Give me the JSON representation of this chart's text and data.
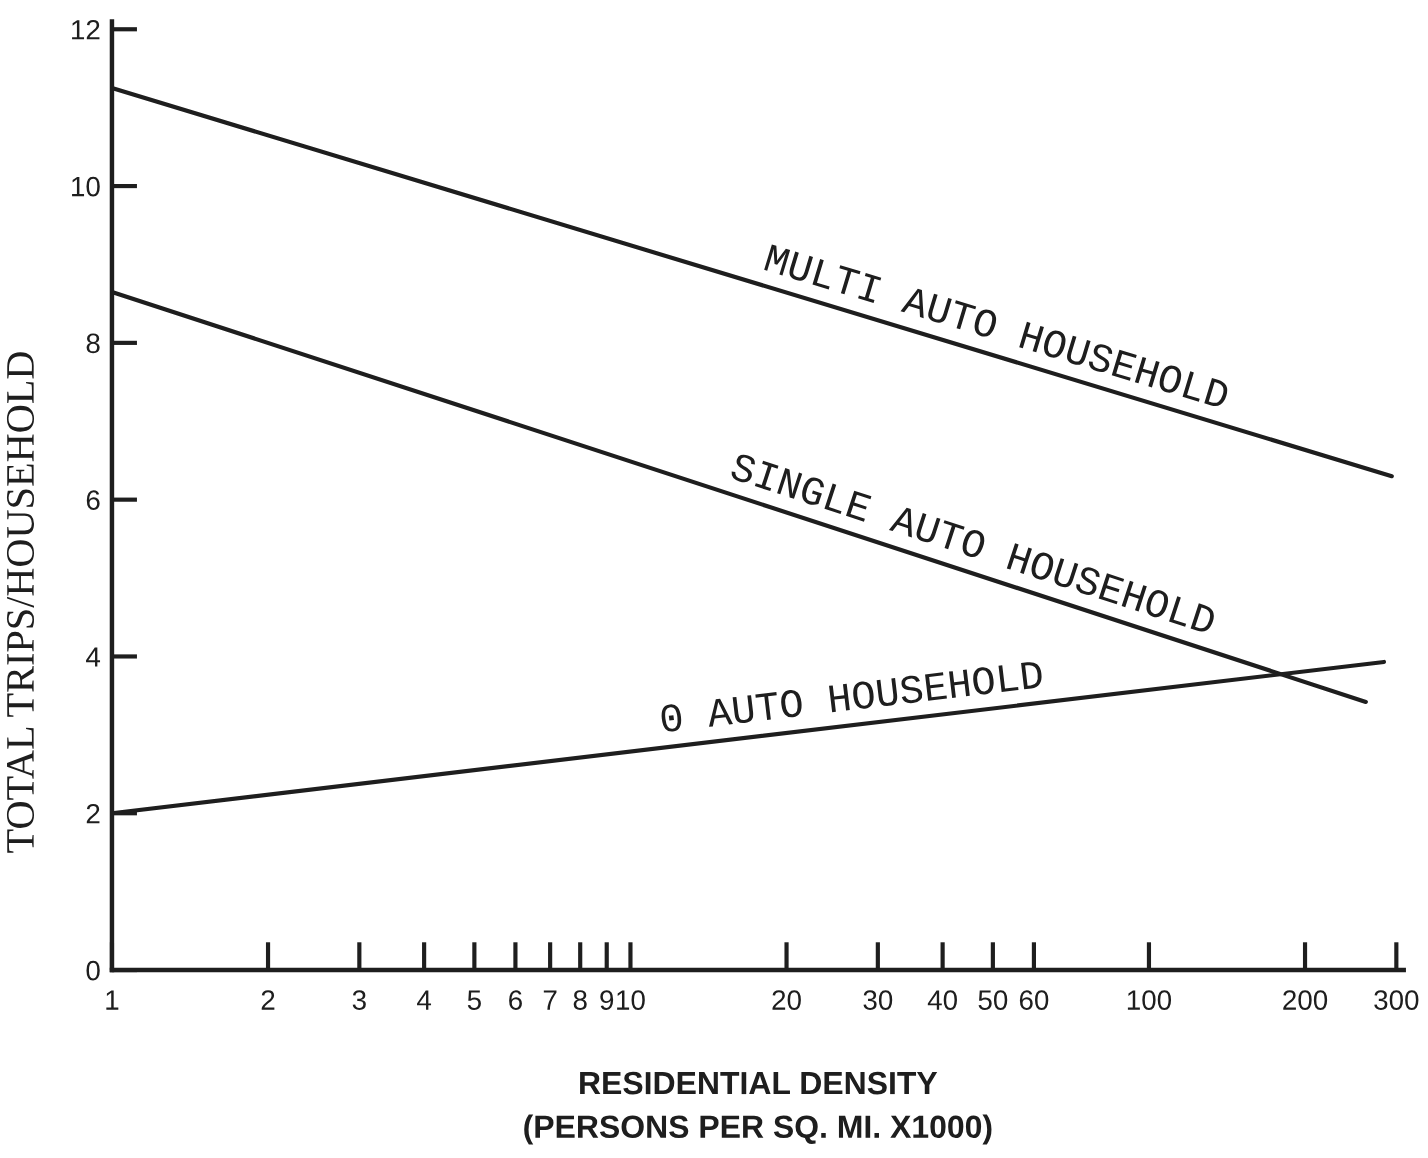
{
  "chart_data": {
    "type": "line",
    "xlabel": "RESIDENTIAL DENSITY\n(PERSONS PER SQ. MI. X1000)",
    "ylabel": "TOTAL TRIPS/HOUSEHOLD",
    "log": "x",
    "xlim": [
      1,
      310
    ],
    "xticks": [
      1,
      2,
      3,
      4,
      5,
      6,
      7,
      8,
      9,
      10,
      20,
      30,
      40,
      50,
      60,
      100,
      200,
      300
    ],
    "ylim": [
      0,
      12.1
    ],
    "yticks": [
      0,
      2,
      4,
      6,
      8,
      10,
      12
    ],
    "line_style": "solid",
    "series": [
      {
        "name": "MULTI AUTO HOUSEHOLD",
        "color": "#1e1e1e",
        "x": [
          1,
          294
        ],
        "values": [
          11.25,
          6.3
        ]
      },
      {
        "name": "SINGLE AUTO HOUSEHOLD",
        "color": "#1e1e1e",
        "x": [
          1,
          262
        ],
        "values": [
          8.65,
          3.42
        ]
      },
      {
        "name": "0 AUTO HOUSEHOLD",
        "color": "#1e1e1e",
        "x": [
          1,
          284
        ],
        "values": [
          2.0,
          3.93
        ]
      }
    ]
  }
}
